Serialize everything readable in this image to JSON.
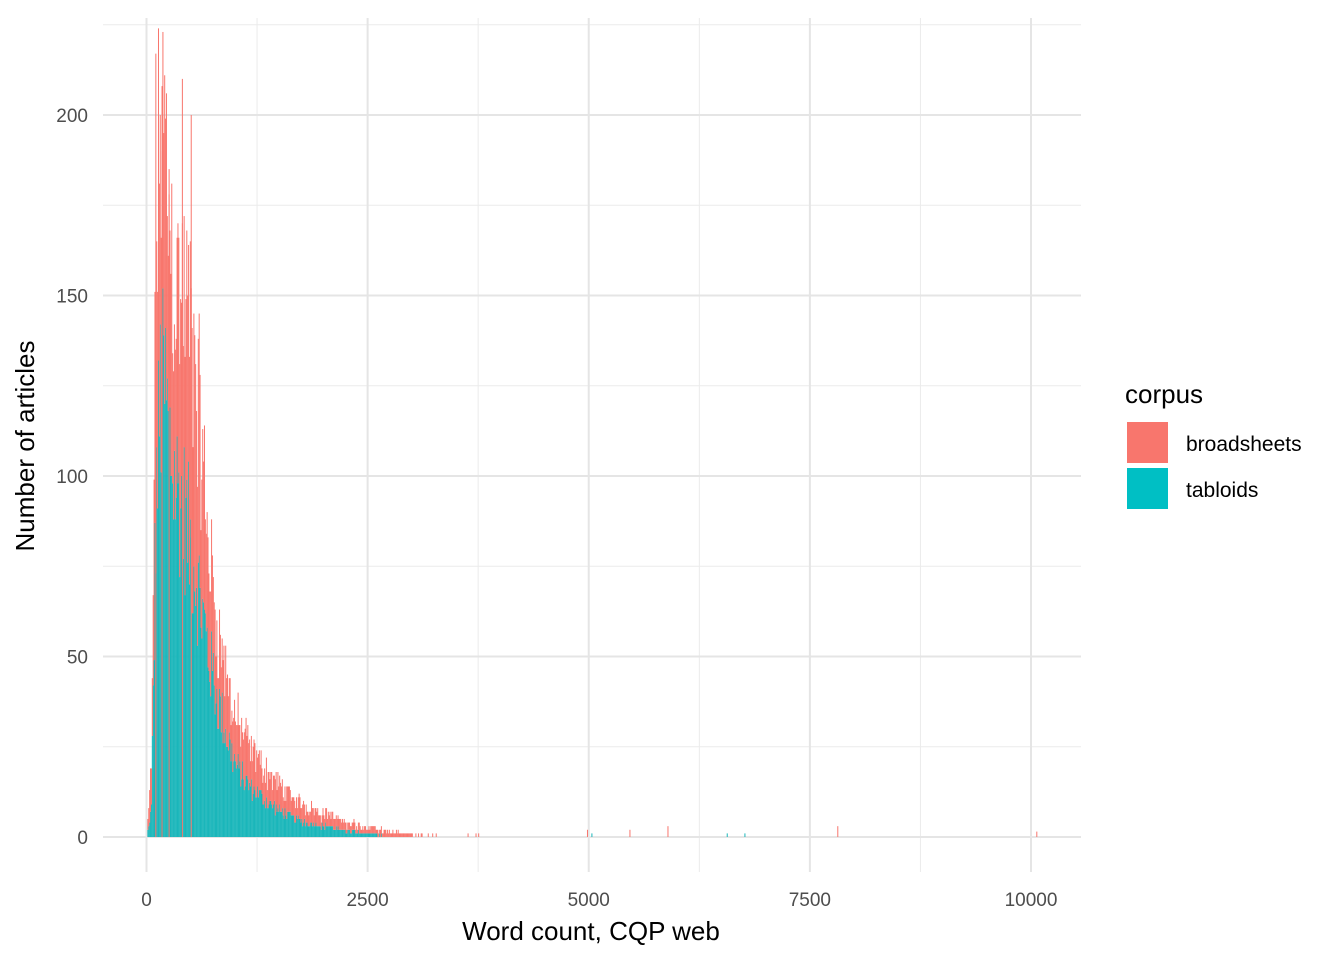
{
  "chart_data": {
    "type": "bar",
    "subtype": "stacked-histogram",
    "title": "",
    "xlabel": "Word count, CQP web",
    "ylabel": "Number of articles",
    "xlim": [
      -250,
      10300
    ],
    "ylim": [
      -10,
      227
    ],
    "x_ticks": [
      0,
      2500,
      5000,
      7500,
      10000
    ],
    "x_tick_labels": [
      "0",
      "2500",
      "5000",
      "7500",
      "10000"
    ],
    "y_ticks": [
      0,
      50,
      100,
      150,
      200
    ],
    "y_tick_labels": [
      "0",
      "50",
      "100",
      "150",
      "200"
    ],
    "grid": true,
    "legend": {
      "title": "corpus",
      "position": "right",
      "entries": [
        {
          "label": "broadsheets",
          "color": "#F8766D"
        },
        {
          "label": "tabloids",
          "color": "#00BFC4"
        }
      ]
    },
    "bin_width": 10,
    "series": [
      {
        "name": "tabloids",
        "color": "#1AB6BA",
        "x": [
          0,
          50,
          100,
          150,
          200,
          250,
          300,
          350,
          400,
          450,
          500,
          550,
          600,
          650,
          700,
          750,
          800,
          850,
          900,
          950,
          1000,
          1100,
          1200,
          1300,
          1400,
          1500,
          1600,
          1700,
          1800,
          1900,
          2000,
          2100,
          2200,
          2300,
          2400,
          2500,
          2600,
          2700,
          2800,
          2900,
          3000,
          3200,
          3500,
          3800
        ],
        "y": [
          0,
          8,
          90,
          122,
          124,
          110,
          100,
          96,
          92,
          86,
          80,
          74,
          66,
          58,
          50,
          44,
          38,
          33,
          28,
          24,
          20,
          16,
          13,
          11,
          9,
          7.5,
          6,
          5,
          4,
          3.5,
          3,
          2.5,
          2,
          1.5,
          1.2,
          1,
          0.8,
          0.6,
          0.5,
          0.4,
          0.3,
          0.2,
          0.1,
          0
        ],
        "isolated_spikes": [
          [
            6560,
            1
          ],
          [
            6760,
            1
          ],
          [
            5030,
            1
          ]
        ]
      },
      {
        "name": "broadsheets",
        "color": "#F8766D",
        "x": [
          0,
          50,
          100,
          150,
          200,
          250,
          300,
          350,
          400,
          450,
          500,
          550,
          600,
          650,
          700,
          750,
          800,
          850,
          900,
          950,
          1000,
          1100,
          1200,
          1300,
          1400,
          1500,
          1600,
          1700,
          1800,
          1900,
          2000,
          2100,
          2200,
          2300,
          2400,
          2500,
          2600,
          2700,
          2800,
          2900,
          3000,
          3200,
          3500,
          3800,
          4200,
          4600,
          5000,
          5500,
          6000
        ],
        "y": [
          0,
          12,
          60,
          78,
          70,
          62,
          58,
          56,
          58,
          60,
          60,
          54,
          46,
          38,
          30,
          24,
          20,
          18,
          16,
          14,
          13,
          12,
          10,
          9,
          8,
          7,
          6,
          5,
          4.5,
          4,
          3.5,
          3,
          2.5,
          2.2,
          2,
          1.8,
          1.6,
          1.4,
          1.2,
          1.0,
          0.9,
          0.7,
          0.5,
          0.4,
          0.3,
          0.25,
          0.2,
          0.1,
          0
        ],
        "spikes": [
          [
            100,
            217
          ],
          [
            170,
            208
          ],
          [
            400,
            210
          ],
          [
            500,
            200
          ],
          [
            250,
            185
          ],
          [
            5890,
            3
          ],
          [
            7810,
            3
          ],
          [
            10060,
            1.5
          ],
          [
            5460,
            2
          ],
          [
            4980,
            2
          ]
        ]
      }
    ]
  }
}
